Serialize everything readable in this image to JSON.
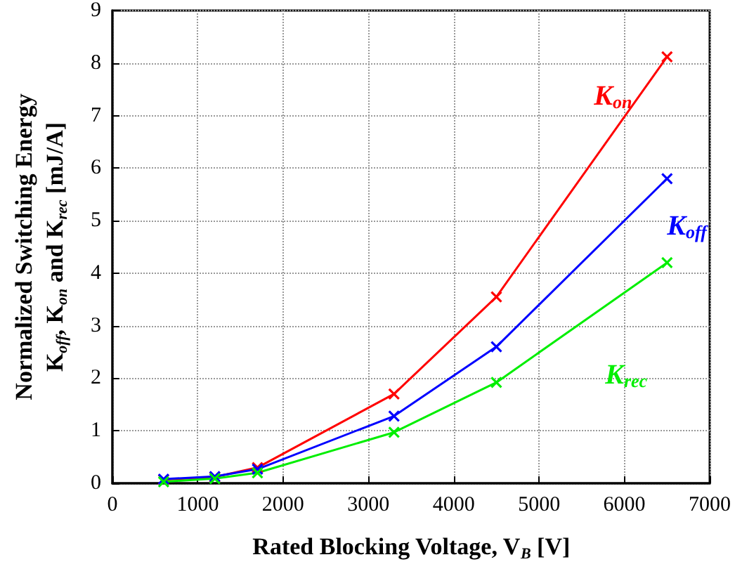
{
  "chart_data": {
    "type": "line",
    "xlabel": "Rated Blocking Voltage, V$_{B}$ [V]",
    "ylabel": "Normalized Switching Energy\nK$_{off}$, K$_{on}$ and K$_{rec}$ [mJ/A]",
    "x": [
      600,
      1200,
      1700,
      3300,
      4500,
      6500
    ],
    "series": [
      {
        "name": "K$_{on}$",
        "color": "#ff0000",
        "values": [
          0.07,
          0.12,
          0.3,
          1.7,
          3.55,
          8.12
        ]
      },
      {
        "name": "K$_{off}$",
        "color": "#0000ff",
        "values": [
          0.08,
          0.13,
          0.27,
          1.28,
          2.6,
          5.8
        ]
      },
      {
        "name": "K$_{rec}$",
        "color": "#00ee00",
        "values": [
          0.03,
          0.09,
          0.2,
          0.97,
          1.92,
          4.2
        ]
      }
    ],
    "xlim": [
      0,
      7000
    ],
    "xticks": [
      0,
      1000,
      2000,
      3000,
      4000,
      5000,
      6000,
      7000
    ],
    "ylim": [
      0,
      9
    ],
    "yticks": [
      0,
      1,
      2,
      3,
      4,
      5,
      6,
      7,
      8,
      9
    ],
    "grid": true,
    "legend": false,
    "marker": "cross",
    "line_style": "solid"
  }
}
